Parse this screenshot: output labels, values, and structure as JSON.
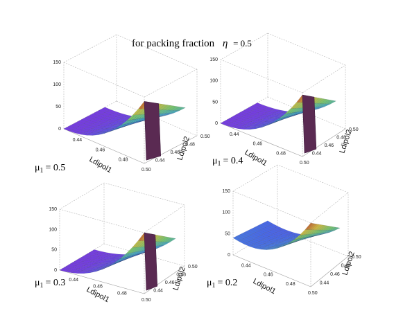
{
  "figure": {
    "title_prefix": "for packing fraction",
    "title_symbol": "η",
    "title_value": "= 0.5"
  },
  "chart_data": [
    {
      "type": "surface",
      "mu_symbol": "μ",
      "mu_subscript": "1",
      "mu_value": "= 0.5",
      "xlabel": "Ldipol1",
      "ylabel": "Ldipol2",
      "x_ticks": [
        "0.44",
        "0.46",
        "0.48",
        "0.50"
      ],
      "y_ticks": [
        "0.44",
        "0.46",
        "0.48",
        "0.50"
      ],
      "z_ticks": [
        "0",
        "50",
        "100",
        "150"
      ],
      "xlim": [
        0.43,
        0.5
      ],
      "ylim": [
        0.43,
        0.5
      ],
      "zlim": [
        0,
        150
      ],
      "peak_z": 140,
      "drop_at_x": 0.5
    },
    {
      "type": "surface",
      "mu_symbol": "μ",
      "mu_subscript": "1",
      "mu_value": "= 0.4",
      "xlabel": "Ldipol1",
      "ylabel": "Ldipol2",
      "x_ticks": [
        "0.44",
        "0.46",
        "0.48",
        "0.50"
      ],
      "y_ticks": [
        "0.44",
        "0.46",
        "0.48",
        "0.50"
      ],
      "z_ticks": [
        "0",
        "50",
        "100",
        "150"
      ],
      "xlim": [
        0.43,
        0.5
      ],
      "ylim": [
        0.43,
        0.5
      ],
      "zlim": [
        0,
        150
      ],
      "peak_z": 145,
      "drop_at_x": 0.5
    },
    {
      "type": "surface",
      "mu_symbol": "μ",
      "mu_subscript": "1",
      "mu_value": "= 0.3",
      "xlabel": "Ldipol1",
      "ylabel": "Ldipol2",
      "x_ticks": [
        "0.44",
        "0.46",
        "0.48",
        "0.50"
      ],
      "y_ticks": [
        "0.44",
        "0.46",
        "0.48",
        "0.50"
      ],
      "z_ticks": [
        "0",
        "50",
        "100",
        "150"
      ],
      "xlim": [
        0.43,
        0.5
      ],
      "ylim": [
        0.43,
        0.5
      ],
      "zlim": [
        0,
        150
      ],
      "peak_z": 150,
      "drop_at_x": 0.5
    },
    {
      "type": "surface",
      "mu_symbol": "μ",
      "mu_subscript": "1",
      "mu_value": "= 0.2",
      "xlabel": "Ldipol1",
      "ylabel": "Ldipol2",
      "x_ticks": [
        "0.44",
        "0.46",
        "0.48",
        "0.50"
      ],
      "y_ticks": [
        "0.44",
        "0.46",
        "0.48",
        "0.50"
      ],
      "z_ticks": [
        "0",
        "50",
        "100",
        "150"
      ],
      "xlim": [
        0.43,
        0.5
      ],
      "ylim": [
        0.43,
        0.5
      ],
      "zlim": [
        0,
        150
      ],
      "peak_z": 150,
      "start_z": 40
    }
  ]
}
